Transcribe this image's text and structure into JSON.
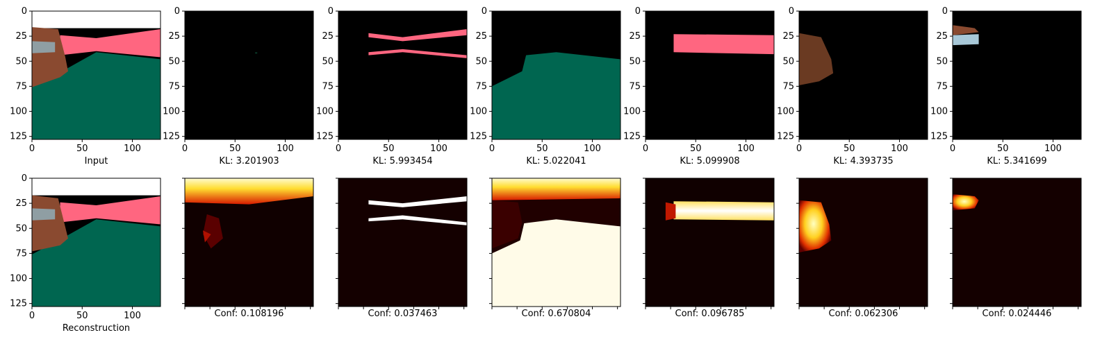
{
  "figure": {
    "axis_ticks": [
      "0",
      "25",
      "50",
      "75",
      "100",
      "125"
    ],
    "x_ticks": [
      "0",
      "50",
      "100"
    ]
  },
  "colors": {
    "background": "#000000",
    "pink": "#ff6680",
    "green": "#006650",
    "skin": "#8a4a30",
    "bandage": "#8f9ea3"
  },
  "chart_data": [
    {
      "type": "image",
      "caption": "Input",
      "content": "rgb-scene",
      "xlim": [
        0,
        127
      ],
      "ylim": [
        127,
        0
      ]
    },
    {
      "type": "image",
      "caption": "KL: 3.201903",
      "content": "mask-empty",
      "kl": 3.201903,
      "xlim": [
        0,
        127
      ],
      "ylim": [
        127,
        0
      ]
    },
    {
      "type": "image",
      "caption": "KL: 5.993454",
      "content": "mask-pink-edges",
      "kl": 5.993454,
      "xlim": [
        0,
        127
      ],
      "ylim": [
        127,
        0
      ]
    },
    {
      "type": "image",
      "caption": "KL: 5.022041",
      "content": "mask-green-ground",
      "kl": 5.022041,
      "xlim": [
        0,
        127
      ],
      "ylim": [
        127,
        0
      ]
    },
    {
      "type": "image",
      "caption": "KL: 5.099908",
      "content": "mask-pink-wall",
      "kl": 5.099908,
      "xlim": [
        0,
        127
      ],
      "ylim": [
        127,
        0
      ]
    },
    {
      "type": "image",
      "caption": "KL: 4.393735",
      "content": "mask-hand",
      "kl": 4.393735,
      "xlim": [
        0,
        127
      ],
      "ylim": [
        127,
        0
      ]
    },
    {
      "type": "image",
      "caption": "KL: 5.341699",
      "content": "mask-bandage",
      "kl": 5.341699,
      "xlim": [
        0,
        127
      ],
      "ylim": [
        127,
        0
      ]
    },
    {
      "type": "image",
      "caption": "Reconstruction",
      "content": "rgb-scene",
      "xlim": [
        0,
        127
      ],
      "ylim": [
        127,
        0
      ]
    },
    {
      "type": "heatmap",
      "caption": "Conf: 0.108196",
      "content": "conf-top-band",
      "conf": 0.108196
    },
    {
      "type": "heatmap",
      "caption": "Conf: 0.037463",
      "content": "conf-thin-lines",
      "conf": 0.037463
    },
    {
      "type": "heatmap",
      "caption": "Conf: 0.670804",
      "content": "conf-ground-and-sky",
      "conf": 0.670804
    },
    {
      "type": "heatmap",
      "caption": "Conf: 0.096785",
      "content": "conf-wall-band",
      "conf": 0.096785
    },
    {
      "type": "heatmap",
      "caption": "Conf: 0.062306",
      "content": "conf-hand",
      "conf": 0.062306
    },
    {
      "type": "heatmap",
      "caption": "Conf: 0.024446",
      "content": "conf-bandage",
      "conf": 0.024446
    }
  ]
}
